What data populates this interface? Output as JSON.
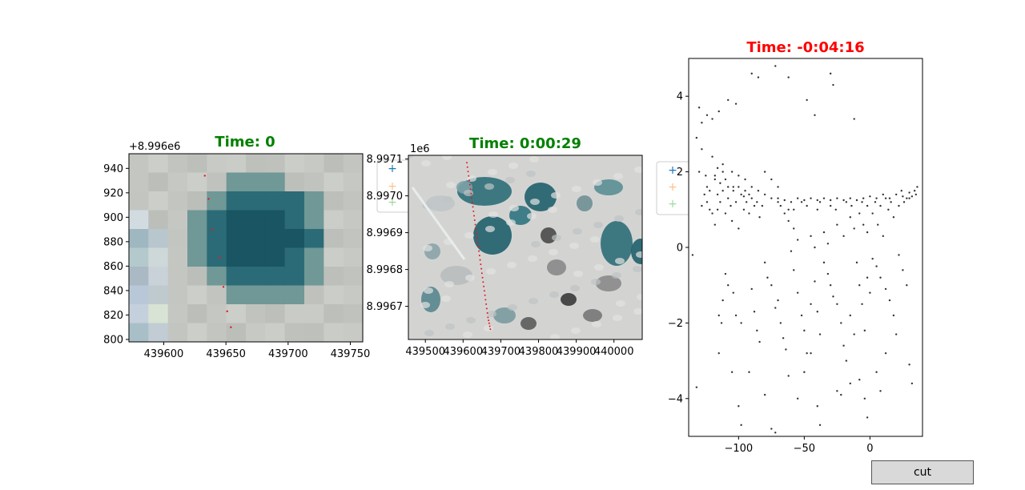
{
  "controls": {
    "cut_label": "cut"
  },
  "colors": {
    "title_green": "#008000",
    "title_red": "#ff0000",
    "marker_blue": "#1f77b4",
    "marker_orange": "#ff7f0e",
    "marker_green": "#2ca02c",
    "track_red": "#e31a1c",
    "scatter_gray": "#333333"
  },
  "chart_data": [
    {
      "type": "image",
      "title": "Time: 0",
      "title_color": "#008000",
      "y_offset_label": "+8.996e6",
      "xlim": [
        439572,
        439760
      ],
      "ylim": [
        798,
        952
      ],
      "x_ticks": [
        439600,
        439650,
        439700,
        439750
      ],
      "x_tick_labels": [
        "439600",
        "439650",
        "439700",
        "439750"
      ],
      "y_ticks": [
        800,
        820,
        840,
        860,
        880,
        900,
        920,
        940
      ],
      "y_tick_labels": [
        "800",
        "820",
        "840",
        "860",
        "880",
        "900",
        "920",
        "940"
      ],
      "track_points": [
        {
          "x": 439633,
          "y": 934
        },
        {
          "x": 439636,
          "y": 915
        },
        {
          "x": 439639,
          "y": 890
        },
        {
          "x": 439645,
          "y": 867
        },
        {
          "x": 439648,
          "y": 843
        },
        {
          "x": 439651,
          "y": 823
        },
        {
          "x": 439654,
          "y": 810
        }
      ]
    },
    {
      "type": "image",
      "title": "Time: 0:00:29",
      "title_color": "#008000",
      "y_offset_label": "1e6",
      "xlim": [
        439455,
        440075
      ],
      "ylim": [
        8.99661,
        8.99711
      ],
      "x_ticks": [
        439500,
        439600,
        439700,
        439800,
        439900,
        440000
      ],
      "x_tick_labels": [
        "439500",
        "439600",
        "439700",
        "439800",
        "439900",
        "440000"
      ],
      "y_ticks": [
        8.9967,
        8.9968,
        8.9969,
        8.997,
        8.9971
      ],
      "y_tick_labels": [
        "8.9967",
        "8.9968",
        "8.9969",
        "8.9970",
        "8.9971"
      ],
      "track_points": [
        {
          "x": 439610,
          "y": 8.99709
        },
        {
          "x": 439618,
          "y": 8.99703
        },
        {
          "x": 439626,
          "y": 8.99697
        },
        {
          "x": 439634,
          "y": 8.99691
        },
        {
          "x": 439642,
          "y": 8.99685
        },
        {
          "x": 439650,
          "y": 8.99679
        },
        {
          "x": 439658,
          "y": 8.99673
        },
        {
          "x": 439666,
          "y": 8.99667
        },
        {
          "x": 439674,
          "y": 8.99663
        }
      ]
    },
    {
      "type": "scatter",
      "title": "Time: -0:04:16",
      "title_color": "#ff0000",
      "xlim": [
        -138,
        40
      ],
      "ylim": [
        -5,
        5
      ],
      "x_ticks": [
        -100,
        -50,
        0
      ],
      "x_tick_labels": [
        "−100",
        "−50",
        "0"
      ],
      "y_ticks": [
        -4,
        -2,
        0,
        2,
        4
      ],
      "y_tick_labels": [
        "−4",
        "−2",
        "0",
        "2",
        "4"
      ],
      "points": [
        [
          -130,
          3.7
        ],
        [
          -128,
          3.3
        ],
        [
          -124,
          3.5
        ],
        [
          -120,
          3.4
        ],
        [
          -115,
          3.6
        ],
        [
          -108,
          3.9
        ],
        [
          -102,
          3.8
        ],
        [
          -90,
          4.6
        ],
        [
          -85,
          4.5
        ],
        [
          -72,
          4.8
        ],
        [
          -62,
          4.5
        ],
        [
          -48,
          3.9
        ],
        [
          -42,
          3.5
        ],
        [
          -30,
          4.6
        ],
        [
          -28,
          4.3
        ],
        [
          -12,
          3.4
        ],
        [
          -132,
          2.9
        ],
        [
          -128,
          2.6
        ],
        [
          -120,
          2.4
        ],
        [
          -112,
          2.2
        ],
        [
          -105,
          2.0
        ],
        [
          -100,
          1.9
        ],
        [
          -95,
          1.8
        ],
        [
          -90,
          1.6
        ],
        [
          -85,
          1.5
        ],
        [
          -80,
          1.4
        ],
        [
          -75,
          1.3
        ],
        [
          -70,
          1.3
        ],
        [
          -65,
          1.25
        ],
        [
          -60,
          1.2
        ],
        [
          -55,
          1.3
        ],
        [
          -50,
          1.25
        ],
        [
          -45,
          1.3
        ],
        [
          -40,
          1.25
        ],
        [
          -35,
          1.3
        ],
        [
          -30,
          1.25
        ],
        [
          -25,
          1.3
        ],
        [
          -20,
          1.25
        ],
        [
          -15,
          1.3
        ],
        [
          -10,
          1.25
        ],
        [
          -5,
          1.3
        ],
        [
          0,
          1.35
        ],
        [
          5,
          1.3
        ],
        [
          10,
          1.4
        ],
        [
          15,
          1.3
        ],
        [
          20,
          1.4
        ],
        [
          25,
          1.35
        ],
        [
          30,
          1.45
        ],
        [
          35,
          1.4
        ],
        [
          -118,
          1.9
        ],
        [
          -116,
          2.1
        ],
        [
          -114,
          1.7
        ],
        [
          -112,
          1.5
        ],
        [
          -110,
          1.8
        ],
        [
          -108,
          1.3
        ],
        [
          -106,
          1.1
        ],
        [
          -104,
          1.6
        ],
        [
          -102,
          1.2
        ],
        [
          -98,
          1.4
        ],
        [
          -96,
          1.0
        ],
        [
          -94,
          1.2
        ],
        [
          -92,
          0.9
        ],
        [
          -88,
          1.1
        ],
        [
          -84,
          0.8
        ],
        [
          -124,
          1.2
        ],
        [
          -122,
          1.0
        ],
        [
          -126,
          1.4
        ],
        [
          -128,
          1.1
        ],
        [
          -120,
          0.9
        ],
        [
          -116,
          1.0
        ],
        [
          -118,
          0.6
        ],
        [
          -110,
          0.9
        ],
        [
          -105,
          0.7
        ],
        [
          -100,
          0.5
        ],
        [
          -110,
          -0.7
        ],
        [
          -108,
          -1.0
        ],
        [
          -104,
          -1.2
        ],
        [
          -112,
          -1.4
        ],
        [
          -115,
          -1.8
        ],
        [
          -113,
          -2.0
        ],
        [
          -102,
          -1.8
        ],
        [
          -98,
          -2.0
        ],
        [
          -90,
          -1.1
        ],
        [
          -88,
          -1.7
        ],
        [
          -86,
          -2.2
        ],
        [
          -84,
          -2.5
        ],
        [
          -80,
          -0.4
        ],
        [
          -78,
          -0.8
        ],
        [
          -75,
          -1.0
        ],
        [
          -72,
          -1.6
        ],
        [
          -70,
          -1.4
        ],
        [
          -68,
          -2.0
        ],
        [
          -66,
          -2.4
        ],
        [
          -64,
          -2.7
        ],
        [
          -60,
          -0.1
        ],
        [
          -58,
          -0.6
        ],
        [
          -55,
          -1.2
        ],
        [
          -52,
          -1.8
        ],
        [
          -50,
          -2.2
        ],
        [
          -48,
          -2.8
        ],
        [
          -45,
          -1.5
        ],
        [
          -42,
          -0.9
        ],
        [
          -40,
          -1.7
        ],
        [
          -38,
          -2.3
        ],
        [
          -35,
          -0.4
        ],
        [
          -32,
          -0.7
        ],
        [
          -30,
          -1.0
        ],
        [
          -28,
          -1.3
        ],
        [
          -25,
          -1.5
        ],
        [
          -22,
          -2.0
        ],
        [
          -20,
          -2.6
        ],
        [
          -18,
          -3.0
        ],
        [
          -15,
          -1.8
        ],
        [
          -12,
          -2.3
        ],
        [
          -10,
          -0.4
        ],
        [
          -8,
          -1.0
        ],
        [
          -6,
          -1.5
        ],
        [
          -4,
          -2.2
        ],
        [
          -2,
          -0.8
        ],
        [
          0,
          -1.2
        ],
        [
          2,
          -0.3
        ],
        [
          5,
          -0.5
        ],
        [
          8,
          -0.8
        ],
        [
          12,
          -1.1
        ],
        [
          15,
          -1.4
        ],
        [
          18,
          -1.8
        ],
        [
          20,
          -2.3
        ],
        [
          22,
          -0.2
        ],
        [
          25,
          -0.6
        ],
        [
          28,
          -1.0
        ],
        [
          30,
          -3.1
        ],
        [
          32,
          -3.6
        ],
        [
          -135,
          -0.2
        ],
        [
          -132,
          -3.7
        ],
        [
          -115,
          -2.8
        ],
        [
          -105,
          -3.3
        ],
        [
          -100,
          -4.2
        ],
        [
          -98,
          -4.7
        ],
        [
          -92,
          -3.3
        ],
        [
          -80,
          -3.9
        ],
        [
          -75,
          -4.8
        ],
        [
          -72,
          -4.9
        ],
        [
          -62,
          -3.4
        ],
        [
          -55,
          -4.0
        ],
        [
          -50,
          -3.3
        ],
        [
          -45,
          -2.8
        ],
        [
          -40,
          -4.2
        ],
        [
          -38,
          -4.7
        ],
        [
          -25,
          -3.8
        ],
        [
          -22,
          -3.9
        ],
        [
          -15,
          -3.6
        ],
        [
          -8,
          -3.5
        ],
        [
          -4,
          -4.0
        ],
        [
          -2,
          -4.5
        ],
        [
          5,
          -3.3
        ],
        [
          8,
          -3.8
        ],
        [
          12,
          -2.8
        ],
        [
          -130,
          2.0
        ],
        [
          -125,
          1.9
        ],
        [
          -122,
          1.5
        ],
        [
          -118,
          1.8
        ],
        [
          -116,
          1.4
        ],
        [
          -114,
          1.2
        ],
        [
          -95,
          1.5
        ],
        [
          -92,
          1.4
        ],
        [
          -70,
          1.2
        ],
        [
          -65,
          0.9
        ],
        [
          -62,
          0.7
        ],
        [
          -58,
          0.5
        ],
        [
          -55,
          0.2
        ],
        [
          -45,
          0.3
        ],
        [
          -42,
          0.0
        ],
        [
          -35,
          0.4
        ],
        [
          -32,
          0.1
        ],
        [
          -25,
          0.6
        ],
        [
          -20,
          0.3
        ],
        [
          -15,
          0.8
        ],
        [
          -12,
          0.5
        ],
        [
          -8,
          0.9
        ],
        [
          -5,
          0.6
        ],
        [
          -2,
          0.4
        ],
        [
          2,
          0.9
        ],
        [
          6,
          0.6
        ],
        [
          10,
          0.3
        ],
        [
          14,
          1.0
        ],
        [
          18,
          0.8
        ],
        [
          22,
          1.1
        ],
        [
          26,
          1.2
        ],
        [
          30,
          1.3
        ],
        [
          34,
          1.5
        ],
        [
          36,
          1.6
        ],
        [
          -80,
          2.0
        ],
        [
          -75,
          1.8
        ],
        [
          -70,
          1.6
        ],
        [
          -68,
          1.1
        ],
        [
          -62,
          1.0
        ],
        [
          -58,
          1.0
        ],
        [
          -52,
          1.2
        ],
        [
          -48,
          1.1
        ],
        [
          -40,
          1.0
        ],
        [
          -38,
          1.2
        ],
        [
          -30,
          1.1
        ],
        [
          -26,
          1.0
        ],
        [
          -18,
          1.2
        ],
        [
          -14,
          1.1
        ],
        [
          -6,
          1.2
        ],
        [
          -2,
          1.1
        ],
        [
          4,
          1.2
        ],
        [
          8,
          1.1
        ],
        [
          12,
          1.3
        ],
        [
          16,
          1.2
        ],
        [
          24,
          1.5
        ],
        [
          28,
          1.3
        ],
        [
          32,
          1.35
        ],
        [
          -124,
          1.6
        ],
        [
          -112,
          2.0
        ],
        [
          -108,
          1.6
        ],
        [
          -104,
          1.5
        ],
        [
          -100,
          1.6
        ],
        [
          -96,
          1.35
        ],
        [
          -90,
          1.3
        ],
        [
          -86,
          1.2
        ],
        [
          -82,
          1.1
        ]
      ]
    }
  ]
}
